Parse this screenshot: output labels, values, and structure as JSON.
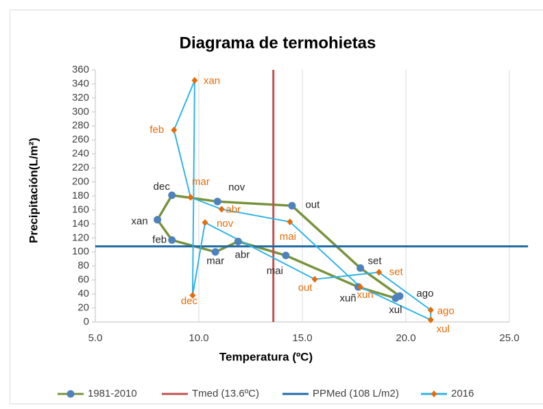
{
  "chart_data": {
    "type": "scatter",
    "title": "Diagrama de termohietas",
    "x_label": "Temperatura (ºC)",
    "y_label": "Precipitación(L/m²)",
    "categories": [
      "xan",
      "feb",
      "mar",
      "abr",
      "mai",
      "xuñ",
      "xul",
      "ago",
      "set",
      "out",
      "nov",
      "dec"
    ],
    "series": [
      {
        "name": "1981-2010",
        "color": "#77933c",
        "marker_color": "#4f81bd",
        "marker": "circle",
        "label_color": "#262626",
        "x": [
          8.0,
          8.7,
          10.8,
          11.9,
          14.2,
          17.7,
          19.5,
          19.7,
          17.8,
          14.5,
          10.9,
          8.7
        ],
        "values": [
          146,
          117,
          100,
          115,
          95,
          50,
          34,
          37,
          77,
          166,
          172,
          181
        ]
      },
      {
        "name": "Tmed (13.6ºC)",
        "color": "#c0504d",
        "x": [
          13.6,
          13.6
        ],
        "values": [
          0,
          360
        ]
      },
      {
        "name": "PPMed (108 L/m2)",
        "color": "#1f6aa5",
        "x": [
          5,
          25.9
        ],
        "values": [
          108,
          108
        ]
      },
      {
        "name": "2016",
        "color": "#2eb4e6",
        "marker_color": "#e46c0a",
        "marker": "diamond",
        "label_color": "#e46c0a",
        "x": [
          9.8,
          8.8,
          9.6,
          11.1,
          14.4,
          17.8,
          21.2,
          21.2,
          18.7,
          15.6,
          10.3,
          9.7
        ],
        "values": [
          345,
          274,
          178,
          161,
          143,
          50,
          3,
          17,
          71,
          61,
          142,
          38
        ]
      }
    ],
    "xlim": [
      5,
      25
    ],
    "xticks": [
      {
        "value": 5,
        "label": "5.0"
      },
      {
        "value": 10,
        "label": "10.0"
      },
      {
        "value": 15,
        "label": "15.0"
      },
      {
        "value": 20,
        "label": "20.0"
      },
      {
        "value": 25,
        "label": "25.0"
      }
    ],
    "ylim": [
      0,
      360
    ],
    "yticks": [
      0,
      20,
      40,
      60,
      80,
      100,
      120,
      140,
      160,
      180,
      200,
      220,
      240,
      260,
      280,
      300,
      320,
      340,
      360
    ],
    "grid": "x",
    "legend": "bottom"
  }
}
